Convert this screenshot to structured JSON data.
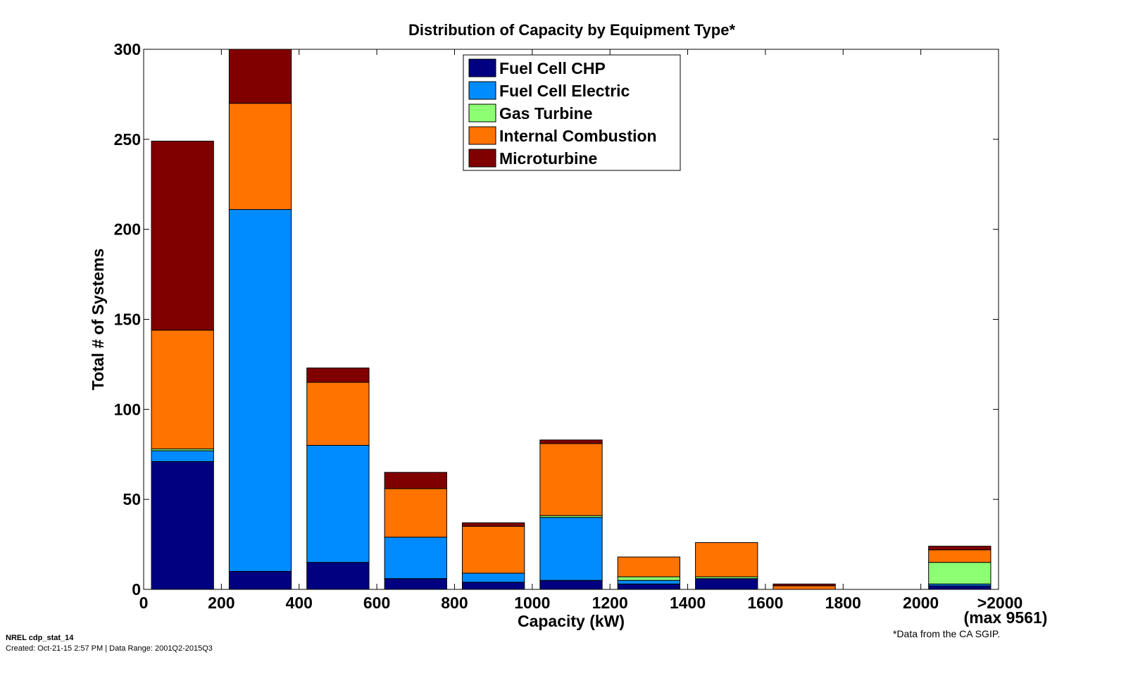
{
  "chart_data": {
    "type": "bar",
    "stacked": true,
    "title": "Distribution of Capacity by Equipment Type*",
    "xlabel": "Capacity (kW)",
    "ylabel": "Total # of Systems",
    "ylim": [
      0,
      300
    ],
    "yticks": [
      0,
      50,
      100,
      150,
      200,
      250,
      300
    ],
    "xlim": [
      0,
      2200
    ],
    "xticks": [
      "0",
      "200",
      "400",
      "600",
      "800",
      "1000",
      "1200",
      "1400",
      "1600",
      "1800",
      "2000"
    ],
    "overflow_label_line1": ">2000",
    "overflow_label_line2": "(max 9561)",
    "categories": [
      "0-200",
      "200-400",
      "400-600",
      "600-800",
      "800-1000",
      "1000-1200",
      "1200-1400",
      "1400-1600",
      "1600-1800",
      "1800-2000",
      ">2000"
    ],
    "series": [
      {
        "name": "Fuel Cell CHP",
        "color": "#000080",
        "values": [
          71,
          10,
          15,
          6,
          4,
          5,
          3,
          6,
          0,
          0,
          2
        ]
      },
      {
        "name": "Fuel Cell Electric",
        "color": "#008CFF",
        "values": [
          6,
          201,
          65,
          23,
          5,
          35,
          2,
          0,
          0,
          0,
          1
        ]
      },
      {
        "name": "Gas Turbine",
        "color": "#8CFF73",
        "values": [
          1,
          0,
          0,
          0,
          0,
          1,
          2,
          1,
          0,
          0,
          12
        ]
      },
      {
        "name": "Internal Combustion",
        "color": "#FF7300",
        "values": [
          66,
          59,
          35,
          27,
          26,
          40,
          11,
          19,
          2,
          0,
          7
        ]
      },
      {
        "name": "Microturbine",
        "color": "#800000",
        "values": [
          105,
          30,
          8,
          9,
          2,
          2,
          0,
          0,
          1,
          0,
          2
        ]
      }
    ],
    "grid": false,
    "legend_position": "top-center"
  },
  "footer": {
    "id": "NREL cdp_stat_14",
    "created": "Created: Oct-21-15  2:57 PM | Data Range: 2001Q2-2015Q3",
    "footnote": "*Data from the CA SGIP."
  }
}
